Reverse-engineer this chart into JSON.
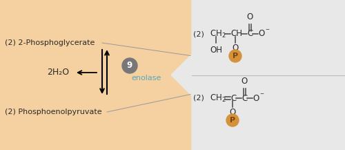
{
  "bg_left_color": "#f5d0a0",
  "bg_right_color": "#e8e8e8",
  "text_color": "#2a2a2a",
  "enolase_color": "#5ba8bc",
  "step_circle_color": "#777777",
  "phosphate_color": "#d4923a",
  "phosphate_text_color": "#7a4010",
  "label_top": "(2) 2-Phosphoglycerate",
  "label_bottom": "(2) Phosphoenolpyruvate",
  "h2o_label": "2H₂O",
  "enolase_label": "enolase",
  "step_number": "9",
  "figsize": [
    5.0,
    2.17
  ],
  "dpi": 100
}
